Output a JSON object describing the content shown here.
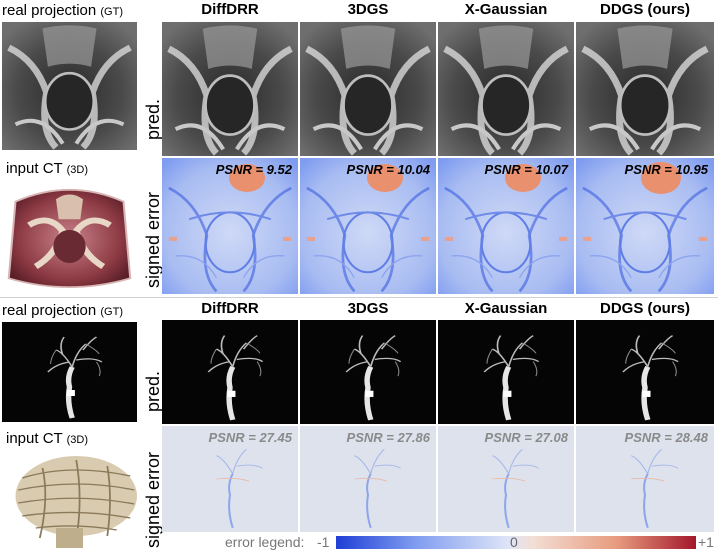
{
  "top": {
    "gt_label": "real projection",
    "gt_suffix": "(GT)",
    "ct_label": "input CT",
    "ct_suffix": "(3D)",
    "pred_label": "pred.",
    "err_label": "signed error",
    "methods": [
      "DiffDRR",
      "3DGS",
      "X-Gaussian",
      "DDGS (ours)"
    ],
    "psnr": [
      "PSNR = 9.52",
      "PSNR = 10.04",
      "PSNR = 10.07",
      "PSNR = 10.95"
    ]
  },
  "bottom": {
    "gt_label": "real projection",
    "gt_suffix": "(GT)",
    "ct_label": "input CT",
    "ct_suffix": "(3D)",
    "pred_label": "pred.",
    "err_label": "signed error",
    "methods": [
      "DiffDRR",
      "3DGS",
      "X-Gaussian",
      "DDGS (ours)"
    ],
    "psnr": [
      "PSNR = 27.45",
      "PSNR = 27.86",
      "PSNR = 27.08",
      "PSNR = 28.48"
    ]
  },
  "legend": {
    "label": "error legend:",
    "min": "-1",
    "mid": "0",
    "max": "+1"
  },
  "colors": {
    "error_negative": "#1f3fd6",
    "error_zero": "#dfe5f7",
    "error_positive": "#a3172b",
    "psnr_bottom": "#8a8a8a"
  }
}
